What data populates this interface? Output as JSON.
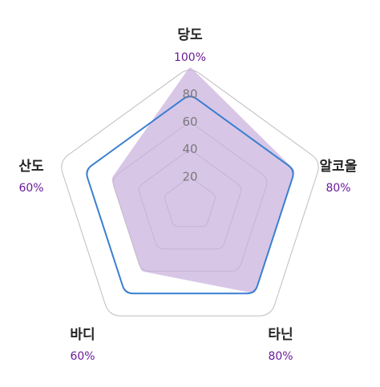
{
  "chart_data": {
    "type": "radar",
    "axes": [
      {
        "name": "당도",
        "value_label": "100%"
      },
      {
        "name": "알코올",
        "value_label": "80%"
      },
      {
        "name": "타닌",
        "value_label": "80%"
      },
      {
        "name": "바디",
        "value_label": "60%"
      },
      {
        "name": "산도",
        "value_label": "60%"
      }
    ],
    "rlim": [
      0,
      100
    ],
    "ticks": [
      20,
      40,
      60,
      80
    ],
    "grid_levels": [
      20,
      40,
      60,
      80,
      100
    ],
    "series": [
      {
        "values": [
          100,
          80,
          80,
          60,
          60
        ],
        "style": "filled",
        "color": "#c9b0de"
      },
      {
        "values": [
          80,
          80,
          80,
          80,
          80
        ],
        "style": "outline",
        "color": "#3a7fd0"
      }
    ],
    "grid_color": "#bdbdbd",
    "label_color": "#222222",
    "value_label_color": "#6a1b9a"
  }
}
